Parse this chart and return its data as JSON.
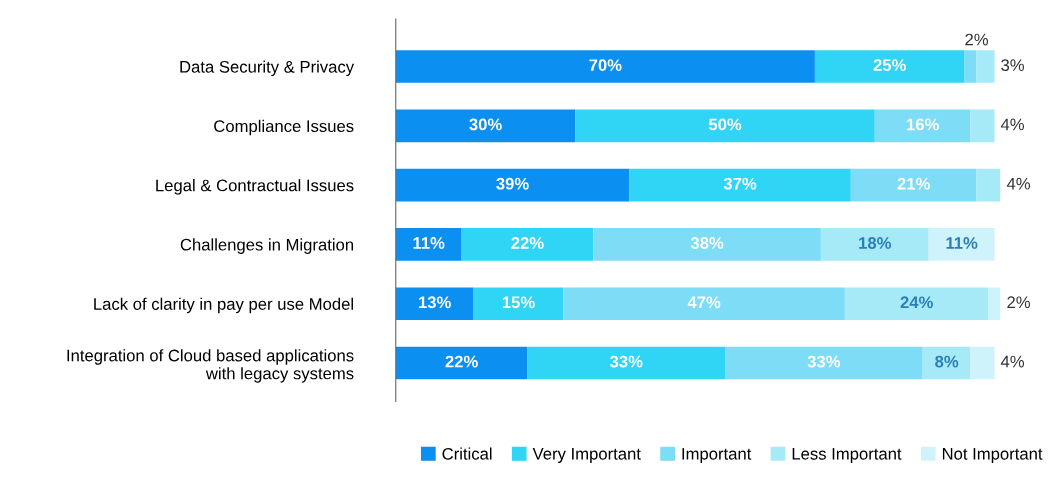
{
  "chart_data": {
    "type": "bar",
    "orientation": "horizontal",
    "stacked": true,
    "tick_labels": "y",
    "legend": "bottom",
    "xlim": [
      0,
      101
    ],
    "categories": [
      "Data Security & Privacy",
      "Compliance Issues",
      "Legal & Contractual Issues",
      "Challenges in Migration",
      "Lack of clarity in pay per use Model",
      "Integration of Cloud based applications\nwith legacy systems"
    ],
    "series": [
      {
        "name": "Critical",
        "color": "#0b8ff0",
        "values": [
          70,
          30,
          39,
          11,
          13,
          22
        ],
        "value_labels": [
          "70%",
          "30%",
          "39%",
          "11%",
          "13%",
          "22%"
        ]
      },
      {
        "name": "Very Important",
        "color": "#30d5f5",
        "values": [
          25,
          50,
          37,
          22,
          15,
          33
        ],
        "value_labels": [
          "25%",
          "50%",
          "37%",
          "22%",
          "15%",
          "33%"
        ]
      },
      {
        "name": "Important",
        "color": "#7ddcf6",
        "values": [
          2,
          16,
          21,
          38,
          47,
          33
        ],
        "value_labels": [
          "2%",
          "16%",
          "21%",
          "38%",
          "47%",
          "33%"
        ]
      },
      {
        "name": "Less Important",
        "color": "#a6eaf8",
        "values": [
          3,
          4,
          4,
          18,
          24,
          8
        ],
        "value_labels": [
          "3%",
          "4%",
          "4%",
          "18%",
          "24%",
          "8%"
        ]
      },
      {
        "name": "Not Important",
        "color": "#cff3fa",
        "values": [
          null,
          null,
          null,
          11,
          2,
          4
        ],
        "value_labels": [
          null,
          null,
          null,
          "11%",
          "2%",
          "4%"
        ]
      }
    ]
  }
}
